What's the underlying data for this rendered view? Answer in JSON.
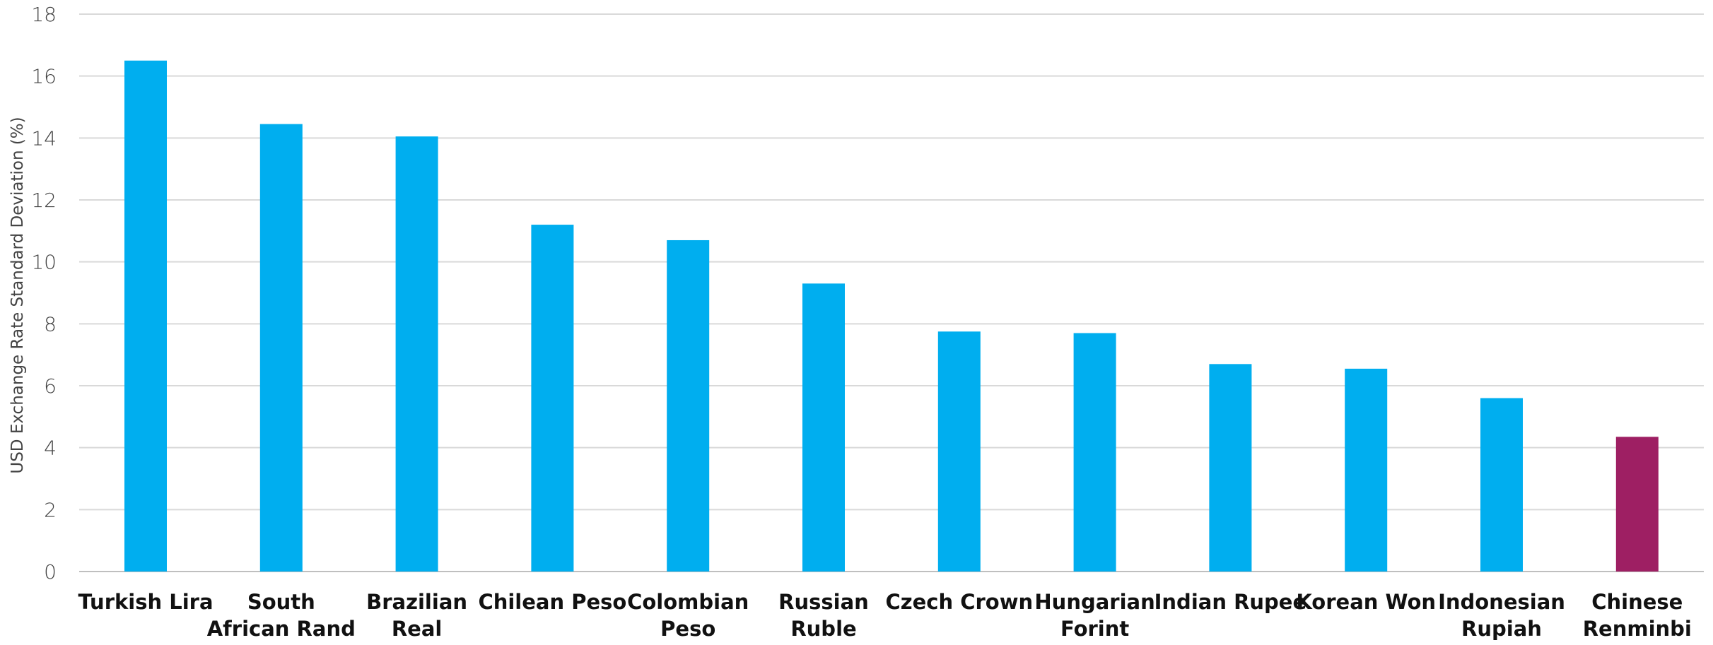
{
  "chart_data": {
    "type": "bar",
    "title": "",
    "xlabel": "",
    "ylabel": "USD Exchange Rate Standard Deviation (%)",
    "ylim": [
      0,
      18
    ],
    "y_ticks": [
      0,
      2,
      4,
      6,
      8,
      10,
      12,
      14,
      16,
      18
    ],
    "grid": true,
    "legend": "none",
    "categories": [
      "Turkish Lira",
      "South African Rand",
      "Brazilian Real",
      "Chilean Peso",
      "Colombian Peso",
      "Russian Ruble",
      "Czech Crown",
      "Hungarian Forint",
      "Indian Rupee",
      "Korean Won",
      "Indonesian Rupiah",
      "Chinese Renminbi"
    ],
    "category_label_lines": [
      [
        "Turkish Lira"
      ],
      [
        "South",
        "African Rand"
      ],
      [
        "Brazilian",
        "Real"
      ],
      [
        "Chilean Peso"
      ],
      [
        "Colombian",
        "Peso"
      ],
      [
        "Russian",
        "Ruble"
      ],
      [
        "Czech Crown"
      ],
      [
        "Hungarian",
        "Forint"
      ],
      [
        "Indian Rupee"
      ],
      [
        "Korean Won"
      ],
      [
        "Indonesian",
        "Rupiah"
      ],
      [
        "Chinese",
        "Renminbi"
      ]
    ],
    "values": [
      16.5,
      14.45,
      14.05,
      11.2,
      10.7,
      9.3,
      7.75,
      7.7,
      6.7,
      6.55,
      5.6,
      4.35
    ],
    "bar_colors": [
      "#00aeef",
      "#00aeef",
      "#00aeef",
      "#00aeef",
      "#00aeef",
      "#00aeef",
      "#00aeef",
      "#00aeef",
      "#00aeef",
      "#00aeef",
      "#00aeef",
      "#9e1f63"
    ]
  },
  "colors": {
    "primary_bar": "#00aeef",
    "highlight_bar": "#9e1f63",
    "grid": "#d9d9d9"
  }
}
